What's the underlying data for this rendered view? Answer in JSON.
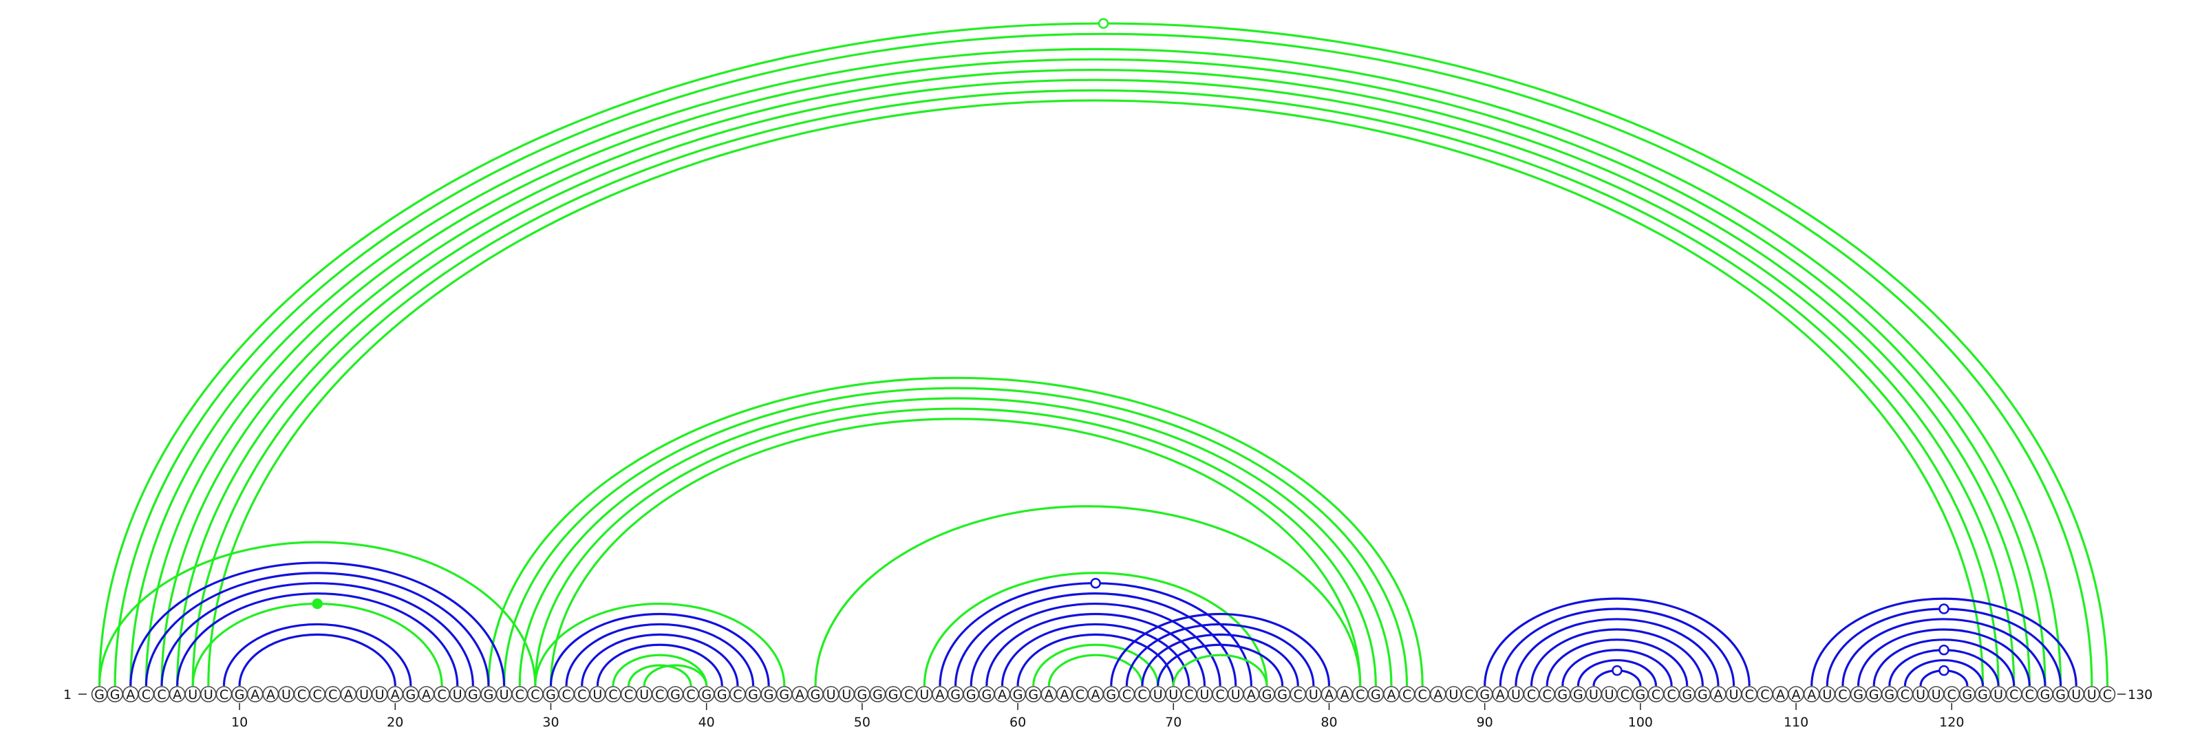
{
  "sequence": "GGACCAUUCGAAUCCCAUUAGACUGGUCCGCCUCCUCGCGGCGGGAGUUGGGCUAGGGAGGAACAGCCUUCUCUAGGCUAACGACCAUCGAUCCGGUUCGCCGGAUCCAAAUCGGGCUUCGGUCCGGUUC",
  "start_label": "1",
  "end_label": "130",
  "ticks": [
    "10",
    "20",
    "30",
    "40",
    "50",
    "60",
    "70",
    "80",
    "90",
    "100",
    "110",
    "120"
  ],
  "colors": {
    "green": "#22ee22",
    "blue": "#1111dd"
  },
  "arcs": [
    {
      "i": 1,
      "j": 130,
      "color": "green"
    },
    {
      "i": 2,
      "j": 129,
      "color": "green"
    },
    {
      "i": 3,
      "j": 127,
      "color": "green"
    },
    {
      "i": 4,
      "j": 126,
      "color": "green"
    },
    {
      "i": 5,
      "j": 125,
      "color": "green"
    },
    {
      "i": 6,
      "j": 124,
      "color": "green"
    },
    {
      "i": 7,
      "j": 123,
      "color": "green"
    },
    {
      "i": 8,
      "j": 122,
      "color": "green"
    },
    {
      "i": 26,
      "j": 86,
      "color": "green"
    },
    {
      "i": 27,
      "j": 85,
      "color": "green"
    },
    {
      "i": 28,
      "j": 84,
      "color": "green"
    },
    {
      "i": 29,
      "j": 83,
      "color": "green"
    },
    {
      "i": 30,
      "j": 82,
      "color": "green"
    },
    {
      "i": 47,
      "j": 82,
      "color": "green"
    },
    {
      "i": 1,
      "j": 29,
      "color": "green"
    },
    {
      "i": 3,
      "j": 27,
      "color": "blue"
    },
    {
      "i": 4,
      "j": 26,
      "color": "blue"
    },
    {
      "i": 5,
      "j": 25,
      "color": "blue"
    },
    {
      "i": 6,
      "j": 24,
      "color": "blue"
    },
    {
      "i": 7,
      "j": 23,
      "color": "green"
    },
    {
      "i": 9,
      "j": 21,
      "color": "blue"
    },
    {
      "i": 10,
      "j": 20,
      "color": "blue"
    },
    {
      "i": 29,
      "j": 45,
      "color": "green"
    },
    {
      "i": 30,
      "j": 44,
      "color": "blue"
    },
    {
      "i": 31,
      "j": 43,
      "color": "blue"
    },
    {
      "i": 32,
      "j": 42,
      "color": "blue"
    },
    {
      "i": 33,
      "j": 41,
      "color": "blue"
    },
    {
      "i": 34,
      "j": 40,
      "color": "green"
    },
    {
      "i": 35,
      "j": 39,
      "color": "green"
    },
    {
      "i": 36,
      "j": 40,
      "color": "green"
    },
    {
      "i": 54,
      "j": 76,
      "color": "green"
    },
    {
      "i": 55,
      "j": 75,
      "color": "blue"
    },
    {
      "i": 56,
      "j": 74,
      "color": "blue"
    },
    {
      "i": 57,
      "j": 73,
      "color": "blue"
    },
    {
      "i": 58,
      "j": 72,
      "color": "blue"
    },
    {
      "i": 59,
      "j": 71,
      "color": "blue"
    },
    {
      "i": 60,
      "j": 70,
      "color": "blue"
    },
    {
      "i": 61,
      "j": 69,
      "color": "green"
    },
    {
      "i": 62,
      "j": 68,
      "color": "green"
    },
    {
      "i": 66,
      "j": 80,
      "color": "blue"
    },
    {
      "i": 67,
      "j": 79,
      "color": "blue"
    },
    {
      "i": 68,
      "j": 78,
      "color": "blue"
    },
    {
      "i": 69,
      "j": 77,
      "color": "blue"
    },
    {
      "i": 70,
      "j": 76,
      "color": "green"
    },
    {
      "i": 90,
      "j": 107,
      "color": "blue"
    },
    {
      "i": 91,
      "j": 106,
      "color": "blue"
    },
    {
      "i": 92,
      "j": 105,
      "color": "blue"
    },
    {
      "i": 93,
      "j": 104,
      "color": "blue"
    },
    {
      "i": 94,
      "j": 103,
      "color": "blue"
    },
    {
      "i": 95,
      "j": 102,
      "color": "blue"
    },
    {
      "i": 96,
      "j": 101,
      "color": "blue"
    },
    {
      "i": 97,
      "j": 100,
      "color": "blue"
    },
    {
      "i": 111,
      "j": 128,
      "color": "blue"
    },
    {
      "i": 112,
      "j": 127,
      "color": "blue"
    },
    {
      "i": 113,
      "j": 126,
      "color": "blue"
    },
    {
      "i": 114,
      "j": 125,
      "color": "blue"
    },
    {
      "i": 115,
      "j": 124,
      "color": "blue"
    },
    {
      "i": 116,
      "j": 123,
      "color": "blue"
    },
    {
      "i": 117,
      "j": 122,
      "color": "blue"
    },
    {
      "i": 118,
      "j": 121,
      "color": "blue"
    }
  ],
  "markers": [
    {
      "arc": 0,
      "color": "green",
      "filled": false
    },
    {
      "arc": 19,
      "color": "green",
      "filled": true
    },
    {
      "arc": 31,
      "color": "blue",
      "filled": false
    },
    {
      "arc": 51,
      "color": "blue",
      "filled": false
    },
    {
      "arc": 53,
      "color": "blue",
      "filled": false
    },
    {
      "arc": 57,
      "color": "blue",
      "filled": false
    },
    {
      "arc": 59,
      "color": "blue",
      "filled": false
    }
  ]
}
